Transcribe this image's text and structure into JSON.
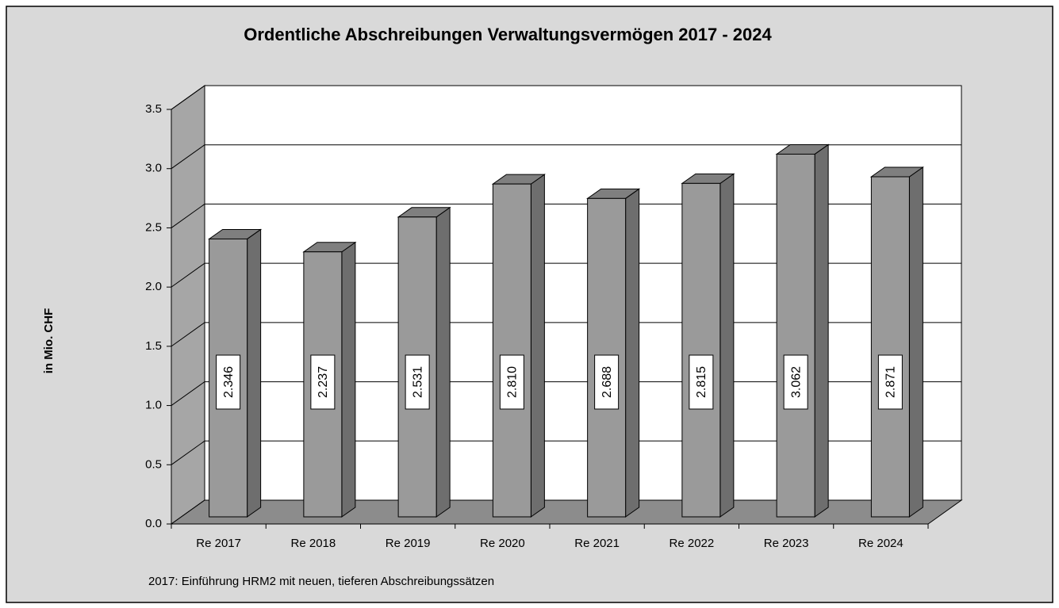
{
  "chart_data": {
    "type": "bar3d",
    "title": "Ordentliche Abschreibungen Verwaltungsvermögen 2017 - 2024",
    "y_label": "in Mio. CHF",
    "note": "2017: Einführung HRM2 mit neuen, tieferen Abschreibungssätzen",
    "categories": [
      "Re 2017",
      "Re 2018",
      "Re 2019",
      "Re 2020",
      "Re 2021",
      "Re 2022",
      "Re 2023",
      "Re 2024"
    ],
    "values": [
      2.346,
      2.237,
      2.531,
      2.81,
      2.688,
      2.815,
      3.062,
      2.871
    ],
    "value_labels": [
      "2.346",
      "2.237",
      "2.531",
      "2.810",
      "2.688",
      "2.815",
      "3.062",
      "2.871"
    ],
    "color": "#9a9a9a",
    "ylim": [
      0,
      3.5
    ],
    "yticks": [
      {
        "value": 0,
        "label": "0.0"
      },
      0.5,
      {
        "value": 1,
        "label": "1.0"
      },
      1.5,
      {
        "value": 2,
        "label": "2.0"
      },
      2.5,
      {
        "value": 3,
        "label": "3.0"
      },
      3.5
    ],
    "grid": true
  }
}
